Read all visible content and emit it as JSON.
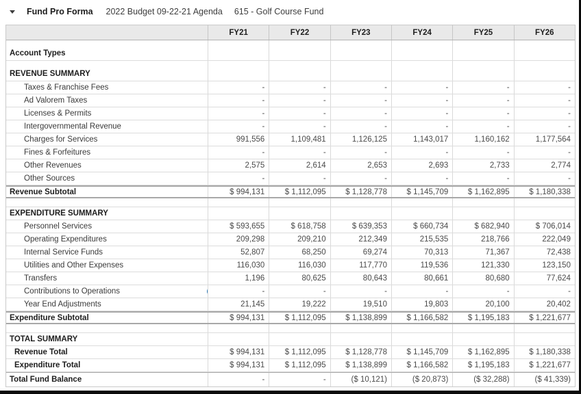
{
  "header": {
    "title": "Fund Pro Forma",
    "budget_name": "2022 Budget 09-22-21 Agenda",
    "fund_name": "615 - Golf Course Fund"
  },
  "icons": {
    "collapse_caret": "chevron-down-icon",
    "row_badge": "chevron-down-circle-icon"
  },
  "colors": {
    "badge_blue": "#2d7dbd",
    "header_bg": "#e9e9e9",
    "grid_line": "#d9d9d9",
    "subtotal_line": "#a8a8a8",
    "frame_border": "#0a0a0a"
  },
  "table": {
    "columns": [
      "FY21",
      "FY22",
      "FY23",
      "FY24",
      "FY25",
      "FY26"
    ],
    "rows": [
      {
        "label": "Account Types",
        "type": "tall",
        "values": [
          "",
          "",
          "",
          "",
          "",
          ""
        ]
      },
      {
        "label": "REVENUE SUMMARY",
        "type": "tall",
        "values": [
          "",
          "",
          "",
          "",
          "",
          ""
        ]
      },
      {
        "label": "Taxes & Franchise Fees",
        "type": "data",
        "values": [
          "-",
          "-",
          "-",
          "-",
          "-",
          "-"
        ]
      },
      {
        "label": "Ad Valorem Taxes",
        "type": "data",
        "values": [
          "-",
          "-",
          "-",
          "-",
          "-",
          "-"
        ]
      },
      {
        "label": "Licenses & Permits",
        "type": "data",
        "values": [
          "-",
          "-",
          "-",
          "-",
          "-",
          "-"
        ]
      },
      {
        "label": "Intergovernmental Revenue",
        "type": "data",
        "values": [
          "-",
          "-",
          "-",
          "-",
          "-",
          "-"
        ]
      },
      {
        "label": "Charges for Services",
        "type": "data",
        "values": [
          "991,556",
          "1,109,481",
          "1,126,125",
          "1,143,017",
          "1,160,162",
          "1,177,564"
        ]
      },
      {
        "label": "Fines & Forfeitures",
        "type": "data",
        "values": [
          "-",
          "-",
          "-",
          "-",
          "-",
          "-"
        ]
      },
      {
        "label": "Other Revenues",
        "type": "data",
        "values": [
          "2,575",
          "2,614",
          "2,653",
          "2,693",
          "2,733",
          "2,774"
        ]
      },
      {
        "label": "Other Sources",
        "type": "data",
        "values": [
          "-",
          "-",
          "-",
          "-",
          "-",
          "-"
        ]
      },
      {
        "label": "Revenue Subtotal",
        "type": "subtotal",
        "values": [
          "$ 994,131",
          "$ 1,112,095",
          "$ 1,128,778",
          "$ 1,145,709",
          "$ 1,162,895",
          "$ 1,180,338"
        ]
      },
      {
        "label": "",
        "type": "gap",
        "values": [
          "",
          "",
          "",
          "",
          "",
          ""
        ]
      },
      {
        "label": "EXPENDITURE SUMMARY",
        "type": "section",
        "values": [
          "",
          "",
          "",
          "",
          "",
          ""
        ]
      },
      {
        "label": "Personnel Services",
        "type": "data",
        "values": [
          "$ 593,655",
          "$ 618,758",
          "$ 639,353",
          "$ 660,734",
          "$ 682,940",
          "$ 706,014"
        ]
      },
      {
        "label": "Operating Expenditures",
        "type": "data",
        "values": [
          "209,298",
          "209,210",
          "212,349",
          "215,535",
          "218,766",
          "222,049"
        ]
      },
      {
        "label": "Internal Service Funds",
        "type": "data",
        "values": [
          "52,807",
          "68,250",
          "69,274",
          "70,313",
          "71,367",
          "72,438"
        ]
      },
      {
        "label": "Utilities and Other Expenses",
        "type": "data",
        "values": [
          "116,030",
          "116,030",
          "117,770",
          "119,536",
          "121,330",
          "123,150"
        ]
      },
      {
        "label": "Transfers",
        "type": "data",
        "values": [
          "1,196",
          "80,625",
          "80,643",
          "80,661",
          "80,680",
          "77,624"
        ]
      },
      {
        "label": "Contributions to Operations",
        "type": "data",
        "badge": true,
        "values": [
          "-",
          "-",
          "-",
          "-",
          "-",
          "-"
        ]
      },
      {
        "label": "Year End Adjustments",
        "type": "data",
        "values": [
          "21,145",
          "19,222",
          "19,510",
          "19,803",
          "20,100",
          "20,402"
        ]
      },
      {
        "label": "Expenditure Subtotal",
        "type": "subtotal",
        "values": [
          "$ 994,131",
          "$ 1,112,095",
          "$ 1,138,899",
          "$ 1,166,582",
          "$ 1,195,183",
          "$ 1,221,677"
        ]
      },
      {
        "label": "",
        "type": "gap",
        "values": [
          "",
          "",
          "",
          "",
          "",
          ""
        ]
      },
      {
        "label": "TOTAL SUMMARY",
        "type": "section",
        "values": [
          "",
          "",
          "",
          "",
          "",
          ""
        ]
      },
      {
        "label": "Revenue Total",
        "type": "total",
        "values": [
          "$ 994,131",
          "$ 1,112,095",
          "$ 1,128,778",
          "$ 1,145,709",
          "$ 1,162,895",
          "$ 1,180,338"
        ]
      },
      {
        "label": "Expenditure Total",
        "type": "total",
        "values": [
          "$ 994,131",
          "$ 1,112,095",
          "$ 1,138,899",
          "$ 1,166,582",
          "$ 1,195,183",
          "$ 1,221,677"
        ]
      },
      {
        "label": "Total Fund Balance",
        "type": "grandtotal",
        "values": [
          "-",
          "-",
          "($ 10,121)",
          "($ 20,873)",
          "($ 32,288)",
          "($ 41,339)"
        ]
      }
    ]
  }
}
